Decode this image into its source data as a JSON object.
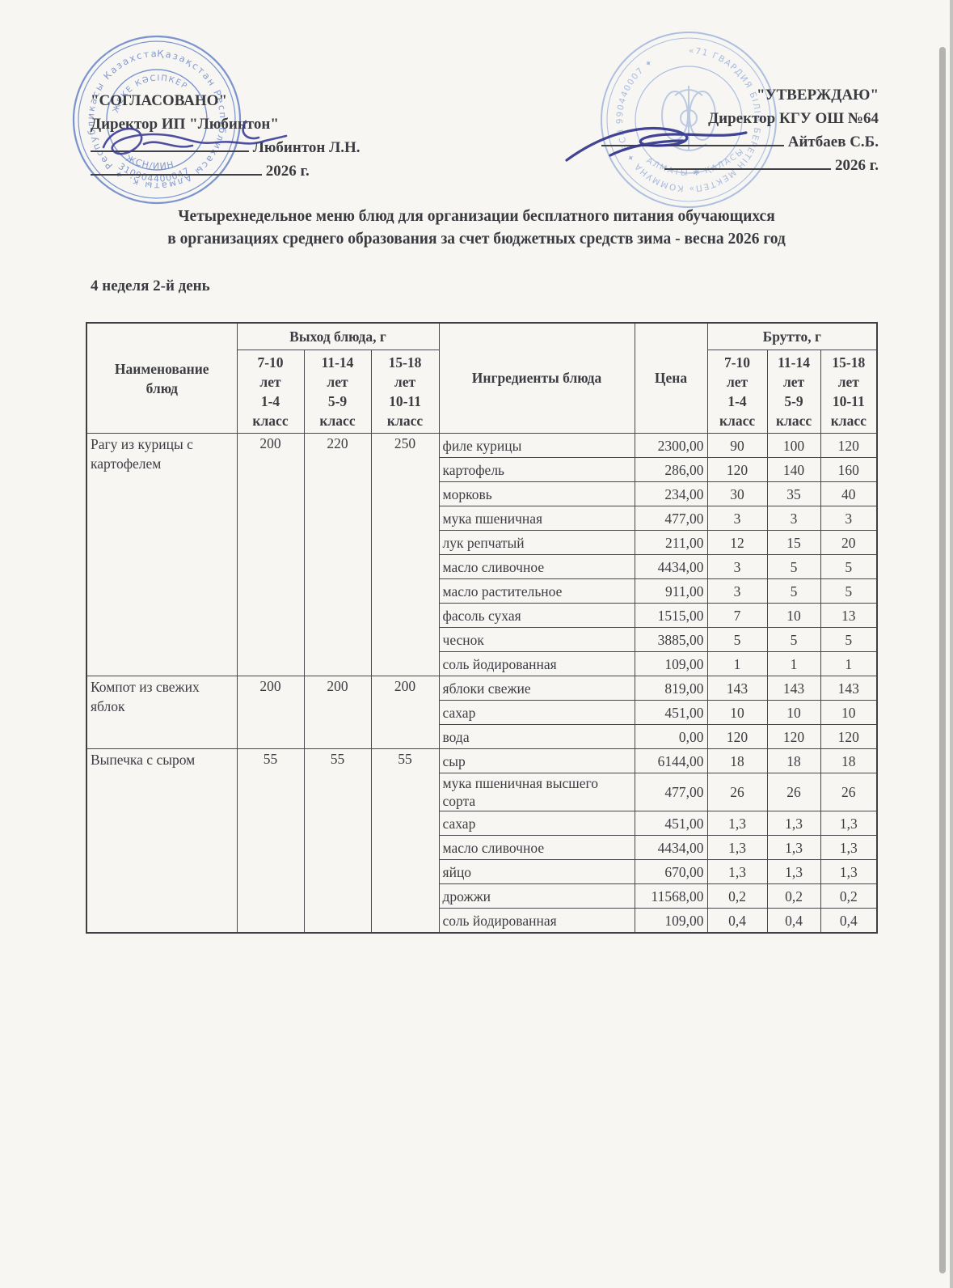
{
  "document": {
    "approval_left": {
      "title": "\"СОГЛАСОВАНО\"",
      "role": "Директор ИП \"Любинтон\"",
      "signer": "Любинтон Л.Н.",
      "year_line": "2026 г."
    },
    "approval_right": {
      "title": "\"УТВЕРЖДАЮ\"",
      "role": "Директор КГУ ОШ №64",
      "signer": "Айтбаев С.Б.",
      "year_line": "2026 г."
    },
    "title_line1": "Четырехнедельное меню блюд для организации бесплатного питания обучающихся",
    "title_line2": "в организациях среднего образования за счет бюджетных средств   зима - весна 2026 год",
    "day_label": "4 неделя 2-й день"
  },
  "stamps": {
    "left": {
      "outer_text": "Қазақстан Республикасы Алматы қ. ✦ Республикасы Казахстан ✦",
      "inner_arc_text": "ЖЕКЕ КӘСІПКЕР",
      "id_line1": "ЖСН/ИИН",
      "id_line2": "310904400047"
    },
    "right": {
      "outer_text": "«71 ГВАРДИЯ БІЛІМ БЕРЕТІН МЕКТЕП» КОММУНА ✦ БСН 990440007 ✦",
      "bottom_text": "АЛМАТЫ ✱ ҚАЛАСЫ ✱"
    }
  },
  "table": {
    "col_name": "Наименование\nблюд",
    "group_vyhod": "Выход блюда, г",
    "col_ingredients": "Ингредиенты блюда",
    "col_price": "Цена",
    "group_brutto": "Брутто, г",
    "age_groups": [
      "7-10\nлет\n1-4\nкласс",
      "11-14\nлет\n5-9\nкласс",
      "15-18\nлет\n10-11\nкласс"
    ],
    "dishes": [
      {
        "name": "Рагу из курицы с картофелем",
        "vyhod": [
          "200",
          "220",
          "250"
        ],
        "ingredients": [
          {
            "name": "филе курицы",
            "price": "2300,00",
            "brutto": [
              "90",
              "100",
              "120"
            ]
          },
          {
            "name": "картофель",
            "price": "286,00",
            "brutto": [
              "120",
              "140",
              "160"
            ]
          },
          {
            "name": "морковь",
            "price": "234,00",
            "brutto": [
              "30",
              "35",
              "40"
            ]
          },
          {
            "name": "мука пшеничная",
            "price": "477,00",
            "brutto": [
              "3",
              "3",
              "3"
            ]
          },
          {
            "name": "лук репчатый",
            "price": "211,00",
            "brutto": [
              "12",
              "15",
              "20"
            ]
          },
          {
            "name": "масло сливочное",
            "price": "4434,00",
            "brutto": [
              "3",
              "5",
              "5"
            ]
          },
          {
            "name": "масло растительное",
            "price": "911,00",
            "brutto": [
              "3",
              "5",
              "5"
            ]
          },
          {
            "name": "фасоль сухая",
            "price": "1515,00",
            "brutto": [
              "7",
              "10",
              "13"
            ]
          },
          {
            "name": "чеснок",
            "price": "3885,00",
            "brutto": [
              "5",
              "5",
              "5"
            ]
          },
          {
            "name": "соль йодированная",
            "price": "109,00",
            "brutto": [
              "1",
              "1",
              "1"
            ]
          }
        ]
      },
      {
        "name": "Компот из свежих яблок",
        "vyhod": [
          "200",
          "200",
          "200"
        ],
        "ingredients": [
          {
            "name": "яблоки свежие",
            "price": "819,00",
            "brutto": [
              "143",
              "143",
              "143"
            ]
          },
          {
            "name": "сахар",
            "price": "451,00",
            "brutto": [
              "10",
              "10",
              "10"
            ]
          },
          {
            "name": "вода",
            "price": "0,00",
            "brutto": [
              "120",
              "120",
              "120"
            ]
          }
        ]
      },
      {
        "name": "Выпечка с сыром",
        "vyhod": [
          "55",
          "55",
          "55"
        ],
        "ingredients": [
          {
            "name": "сыр",
            "price": "6144,00",
            "brutto": [
              "18",
              "18",
              "18"
            ]
          },
          {
            "name": "мука пшеничная высшего сорта",
            "price": "477,00",
            "brutto": [
              "26",
              "26",
              "26"
            ]
          },
          {
            "name": "сахар",
            "price": "451,00",
            "brutto": [
              "1,3",
              "1,3",
              "1,3"
            ]
          },
          {
            "name": "масло сливочное",
            "price": "4434,00",
            "brutto": [
              "1,3",
              "1,3",
              "1,3"
            ]
          },
          {
            "name": "яйцо",
            "price": "670,00",
            "brutto": [
              "1,3",
              "1,3",
              "1,3"
            ]
          },
          {
            "name": "дрожжи",
            "price": "11568,00",
            "brutto": [
              "0,2",
              "0,2",
              "0,2"
            ]
          },
          {
            "name": "соль йодированная",
            "price": "109,00",
            "brutto": [
              "0,4",
              "0,4",
              "0,4"
            ]
          }
        ]
      }
    ]
  },
  "colors": {
    "paper": "#f7f6f3",
    "ink_text": "#3a3b40",
    "stamp_blue": "#4d6fc0",
    "stamp_blue_light": "#8aa5d6",
    "signature_ink": "#3c3e96"
  }
}
